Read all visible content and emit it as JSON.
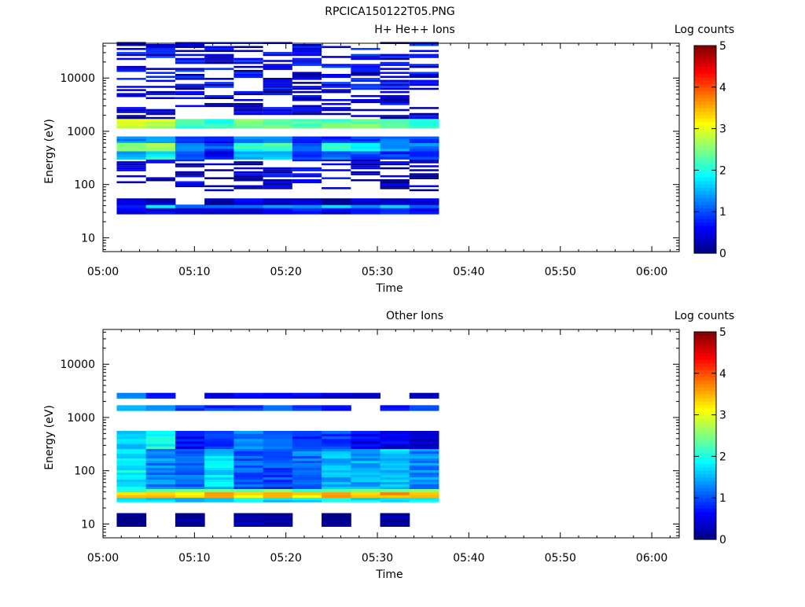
{
  "figure_title": "RPCICA150122T05.PNG",
  "colorbar": {
    "label": "Log counts",
    "ticks": [
      "0",
      "1",
      "2",
      "3",
      "4",
      "5"
    ],
    "min": 0,
    "max": 5,
    "colormap": "jet"
  },
  "chart_data": [
    {
      "type": "heatmap",
      "title": "H+ He++ Ions",
      "xlabel": "Time",
      "ylabel": "Energy (eV)",
      "yscale": "log",
      "xlim": [
        "05:00",
        "06:03"
      ],
      "ylim": [
        5.5,
        45000
      ],
      "x_ticks": [
        "05:00",
        "05:10",
        "05:20",
        "05:30",
        "05:40",
        "05:50",
        "06:00"
      ],
      "y_ticks": [
        "10",
        "100",
        "1000",
        "10000"
      ],
      "time_bins_start": [
        "05:01.5",
        "05:04.7",
        "05:07.9",
        "05:11.1",
        "05:14.3",
        "05:17.5",
        "05:20.7",
        "05:23.9",
        "05:27.1",
        "05:30.3",
        "05:33.5"
      ],
      "time_bin_width_min": 3.2,
      "energy_bands": [
        {
          "e_low": 1150,
          "e_high": 1700,
          "values": [
            3.0,
            2.8,
            2.2,
            2.0,
            2.4,
            2.4,
            2.3,
            2.3,
            2.4,
            2.3,
            2.2
          ]
        },
        {
          "e_low": 600,
          "e_high": 800,
          "values": [
            1.3,
            1.4,
            0.8,
            0.7,
            1.2,
            1.3,
            0.9,
            0.9,
            1.0,
            1.1,
            0.9
          ]
        },
        {
          "e_low": 420,
          "e_high": 600,
          "values": [
            2.5,
            2.6,
            1.3,
            1.0,
            2.0,
            2.2,
            1.1,
            2.0,
            1.8,
            1.4,
            1.2
          ]
        },
        {
          "e_low": 300,
          "e_high": 420,
          "values": [
            1.6,
            1.9,
            0.9,
            0.6,
            1.4,
            1.6,
            0.8,
            1.2,
            1.0,
            0.9,
            0.8
          ]
        },
        {
          "e_low": 36,
          "e_high": 42,
          "values": [
            1.0,
            1.8,
            1.3,
            1.2,
            1.4,
            1.6,
            1.3,
            1.5,
            1.2,
            1.8,
            1.0
          ]
        },
        {
          "e_low": 28,
          "e_high": 36,
          "values": [
            0.6,
            0.5,
            0.3,
            0.5,
            0.5,
            0.7,
            0.6,
            0.4,
            0.5,
            0.9,
            0.6
          ]
        },
        {
          "e_low": 42,
          "e_high": 55,
          "values": [
            0.4,
            0.3,
            0.0,
            0.2,
            0.5,
            0.4,
            0.3,
            0.2,
            0.3,
            0.4,
            0.4
          ]
        }
      ],
      "sparse_counts": {
        "band_range_eV": [
          6000,
          45000
        ],
        "value_range": [
          0.0,
          1.0
        ],
        "note_on_screen": ""
      },
      "data_time_range": [
        "05:01.5",
        "05:36.7"
      ]
    },
    {
      "type": "heatmap",
      "title": "Other Ions",
      "xlabel": "Time",
      "ylabel": "Energy (eV)",
      "yscale": "log",
      "xlim": [
        "05:00",
        "06:03"
      ],
      "ylim": [
        5.5,
        45000
      ],
      "x_ticks": [
        "05:00",
        "05:10",
        "05:20",
        "05:30",
        "05:40",
        "05:50",
        "06:00"
      ],
      "y_ticks": [
        "10",
        "100",
        "1000",
        "10000"
      ],
      "time_bins_start": [
        "05:01.5",
        "05:04.7",
        "05:07.9",
        "05:11.1",
        "05:14.3",
        "05:17.5",
        "05:20.7",
        "05:23.9",
        "05:27.1",
        "05:30.3",
        "05:33.5"
      ],
      "time_bin_width_min": 3.2,
      "energy_bands": [
        {
          "e_low": 31,
          "e_high": 40,
          "values": [
            3.3,
            3.5,
            3.3,
            3.4,
            3.3,
            3.3,
            3.2,
            3.5,
            3.5,
            3.5,
            3.6
          ]
        },
        {
          "e_low": 40,
          "e_high": 46,
          "values": [
            2.0,
            2.5,
            2.5,
            2.2,
            2.3,
            2.4,
            2.2,
            2.5,
            2.4,
            2.5,
            2.3
          ]
        },
        {
          "e_low": 26,
          "e_high": 31,
          "values": [
            1.6,
            1.8,
            1.7,
            1.8,
            1.9,
            1.7,
            1.8,
            1.8,
            1.9,
            1.8,
            1.7
          ]
        },
        {
          "e_low": 46,
          "e_high": 260,
          "values": [
            1.8,
            1.3,
            1.1,
            1.7,
            1.1,
            1.0,
            1.2,
            1.5,
            1.4,
            1.6,
            1.3
          ]
        },
        {
          "e_low": 260,
          "e_high": 560,
          "values": [
            1.7,
            1.9,
            0.7,
            0.8,
            1.3,
            1.1,
            0.8,
            0.9,
            0.6,
            0.5,
            0.5
          ]
        },
        {
          "e_low": 1350,
          "e_high": 1700,
          "values": [
            1.4,
            1.2,
            1.0,
            0.8,
            1.0,
            1.1,
            0.9,
            0.5,
            0.0,
            0.5,
            0.9
          ]
        },
        {
          "e_low": 2300,
          "e_high": 2900,
          "values": [
            1.3,
            0.7,
            0.0,
            0.5,
            0.6,
            0.6,
            0.5,
            0.3,
            0.2,
            0.0,
            0.3
          ]
        },
        {
          "e_low": 9,
          "e_high": 16,
          "values": [
            0.1,
            0.0,
            0.1,
            0.0,
            0.2,
            0.1,
            0.0,
            0.1,
            0.0,
            0.1,
            0.0
          ]
        }
      ],
      "data_time_range": [
        "05:01.5",
        "05:36.7"
      ]
    }
  ]
}
